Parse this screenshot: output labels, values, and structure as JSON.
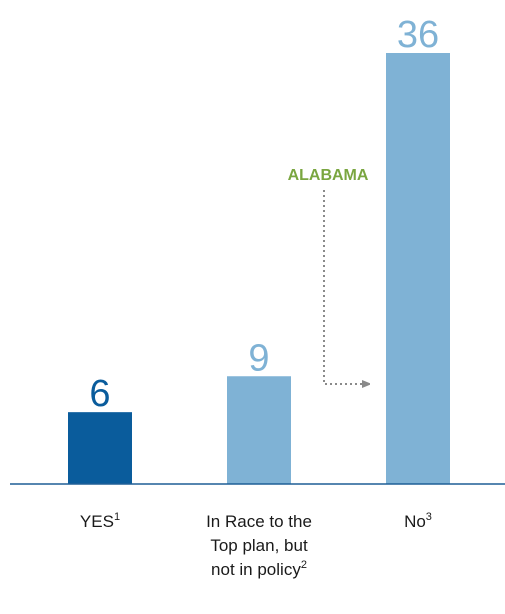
{
  "chart_data": {
    "type": "bar",
    "categories": [
      [
        "YES",
        "1"
      ],
      [
        "In Race to the",
        "Top plan, but",
        "not in policy",
        "2"
      ],
      [
        "No",
        "3"
      ]
    ],
    "category_lines": [
      [
        {
          "text": "YES",
          "sup": "1"
        }
      ],
      [
        {
          "text": "In Race to the"
        },
        {
          "text": "Top plan, but"
        },
        {
          "text": "not in policy",
          "sup": "2"
        }
      ],
      [
        {
          "text": "No",
          "sup": "3"
        }
      ]
    ],
    "values": [
      6,
      9,
      36
    ],
    "value_labels": [
      "6",
      "9",
      "36"
    ],
    "bar_colors": [
      "#0a5c9c",
      "#7fb2d5",
      "#7fb2d5"
    ],
    "label_colors": [
      "#0a5c9c",
      "#7fb2d5",
      "#7fb2d5"
    ],
    "ylim": [
      0,
      36
    ],
    "grid": false,
    "annotation": {
      "text": "ALABAMA",
      "color": "#7aa640",
      "points_to": "No"
    },
    "axis_color": "#1f5f96"
  }
}
